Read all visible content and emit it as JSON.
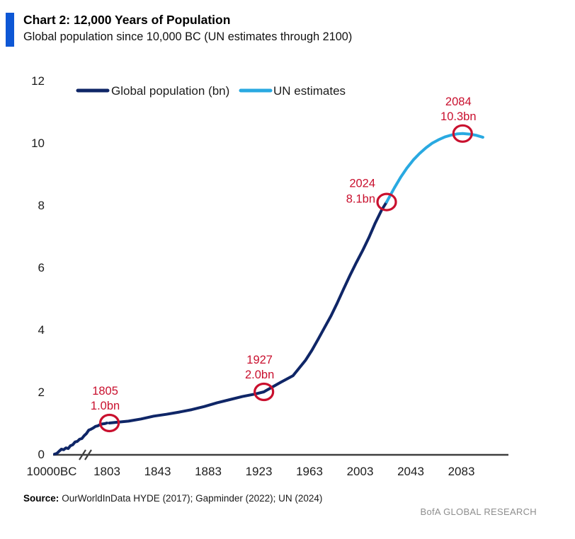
{
  "header": {
    "title": "Chart 2: 12,000 Years of Population",
    "subtitle": "Global population since 10,000 BC (UN estimates through 2100)",
    "accent_color": "#0d57d5"
  },
  "legend": {
    "items": [
      {
        "label": "Global population (bn)",
        "color": "#0f2667"
      },
      {
        "label": "UN estimates",
        "color": "#29a9e1"
      }
    ]
  },
  "chart_data": {
    "type": "line",
    "title": "Chart 2: 12,000 Years of Population",
    "ylim": [
      0,
      12
    ],
    "y_ticks": [
      12,
      10,
      8,
      6,
      4,
      2,
      0
    ],
    "x_axis": {
      "first_label": "10000BC",
      "year_ticks": [
        1803,
        1843,
        1883,
        1923,
        1963,
        2003,
        2043,
        2083
      ],
      "broken_axis": true,
      "grid": false
    },
    "annotation_color": "#c9102e",
    "axis_color": "#3f3f3f",
    "series": [
      {
        "id": "ancient",
        "name": "Global population (bn)",
        "color": "#0f2667",
        "compressed": true,
        "points": [
          [
            -10000,
            0.0
          ],
          [
            -8000,
            0.02
          ],
          [
            -6000,
            0.09
          ],
          [
            -5000,
            0.16
          ],
          [
            -4000,
            0.14
          ],
          [
            -3000,
            0.2
          ],
          [
            -2000,
            0.18
          ],
          [
            -1000,
            0.27
          ],
          [
            -500,
            0.3
          ],
          [
            1,
            0.39
          ],
          [
            200,
            0.41
          ],
          [
            400,
            0.48
          ],
          [
            600,
            0.5
          ],
          [
            800,
            0.59
          ],
          [
            1000,
            0.66
          ],
          [
            1200,
            0.77
          ],
          [
            1300,
            0.8
          ],
          [
            1400,
            0.84
          ],
          [
            1500,
            0.89
          ],
          [
            1600,
            0.91
          ],
          [
            1700,
            0.95
          ],
          [
            1750,
            0.97
          ],
          [
            1780,
            0.98
          ],
          [
            1803,
            1.0
          ]
        ]
      },
      {
        "id": "historical",
        "name": "Global population (bn)",
        "color": "#0f2667",
        "compressed": false,
        "points": [
          [
            1805,
            1.0
          ],
          [
            1810,
            1.02
          ],
          [
            1820,
            1.06
          ],
          [
            1830,
            1.13
          ],
          [
            1840,
            1.22
          ],
          [
            1850,
            1.28
          ],
          [
            1860,
            1.35
          ],
          [
            1870,
            1.43
          ],
          [
            1880,
            1.53
          ],
          [
            1890,
            1.65
          ],
          [
            1900,
            1.75
          ],
          [
            1910,
            1.85
          ],
          [
            1920,
            1.93
          ],
          [
            1927,
            2.0
          ],
          [
            1930,
            2.07
          ],
          [
            1940,
            2.3
          ],
          [
            1950,
            2.52
          ],
          [
            1955,
            2.77
          ],
          [
            1960,
            3.02
          ],
          [
            1965,
            3.34
          ],
          [
            1970,
            3.7
          ],
          [
            1975,
            4.07
          ],
          [
            1980,
            4.44
          ],
          [
            1985,
            4.86
          ],
          [
            1990,
            5.31
          ],
          [
            1995,
            5.74
          ],
          [
            2000,
            6.15
          ],
          [
            2005,
            6.54
          ],
          [
            2010,
            6.96
          ],
          [
            2015,
            7.43
          ],
          [
            2020,
            7.84
          ],
          [
            2024,
            8.1
          ]
        ]
      },
      {
        "id": "un-estimates",
        "name": "UN estimates",
        "color": "#29a9e1",
        "compressed": false,
        "points": [
          [
            2024,
            8.1
          ],
          [
            2030,
            8.55
          ],
          [
            2035,
            8.89
          ],
          [
            2040,
            9.19
          ],
          [
            2045,
            9.45
          ],
          [
            2050,
            9.66
          ],
          [
            2055,
            9.84
          ],
          [
            2060,
            9.99
          ],
          [
            2065,
            10.1
          ],
          [
            2070,
            10.19
          ],
          [
            2075,
            10.25
          ],
          [
            2080,
            10.29
          ],
          [
            2084,
            10.3
          ],
          [
            2090,
            10.28
          ],
          [
            2095,
            10.24
          ],
          [
            2100,
            10.18
          ]
        ]
      }
    ],
    "annotations": [
      {
        "year": 1805,
        "value": 1.0,
        "line1": "1805",
        "line2": "1.0bn",
        "placement": "above"
      },
      {
        "year": 1927,
        "value": 2.0,
        "line1": "1927",
        "line2": "2.0bn",
        "placement": "above"
      },
      {
        "year": 2024,
        "value": 8.1,
        "line1": "2024",
        "line2": "8.1bn",
        "placement": "left"
      },
      {
        "year": 2084,
        "value": 10.3,
        "line1": "2084",
        "line2": "10.3bn",
        "placement": "above"
      }
    ]
  },
  "source": {
    "label": "Source:",
    "text": "OurWorldInData HYDE (2017); Gapminder (2022); UN (2024)"
  },
  "footer": {
    "text": "BofA GLOBAL RESEARCH"
  }
}
